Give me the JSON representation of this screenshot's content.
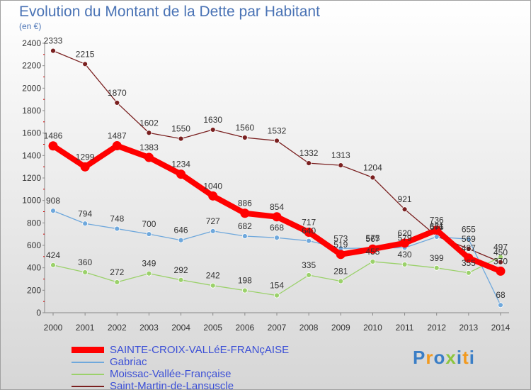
{
  "title": "Evolution du Montant de la Dette par Habitant",
  "subtitle": "(en €)",
  "logo": {
    "text": "Proxiti"
  },
  "chart_data": {
    "type": "line",
    "x": [
      2000,
      2001,
      2002,
      2003,
      2004,
      2005,
      2006,
      2007,
      2008,
      2009,
      2010,
      2011,
      2012,
      2013,
      2014
    ],
    "x_tick_labels": [
      "2000",
      "2001",
      "2002",
      "2003",
      "2004",
      "2005",
      "2006",
      "2007",
      "2008",
      "2009",
      "2010",
      "2011",
      "2012",
      "2013",
      "2014"
    ],
    "ylim": [
      0,
      2400
    ],
    "y_ticks": [
      0,
      200,
      400,
      600,
      800,
      1000,
      1200,
      1400,
      1600,
      1800,
      2000,
      2200,
      2400
    ],
    "y_tick_labels": [
      "0",
      "200",
      "400",
      "600",
      "800",
      "1000",
      "1200",
      "1400",
      "1600",
      "1800",
      "2000",
      "2200",
      "2400"
    ],
    "xlabel": "",
    "ylabel": "",
    "grid": false,
    "legend_position": "bottom-left",
    "series": [
      {
        "name": "SAINTE-CROIX-VALLéE-FRANçAISE",
        "color": "#ff0000",
        "emphasis": "thick",
        "values": [
          1486,
          1299,
          1487,
          1383,
          1234,
          1040,
          886,
          854,
          717,
          519,
          567,
          620,
          736,
          487,
          370
        ],
        "labels": [
          "1486",
          "1299",
          "1487",
          "1383",
          "1234",
          "1040",
          "886",
          "854",
          "717",
          "519",
          "567",
          "620",
          "736",
          "487",
          "370"
        ]
      },
      {
        "name": "Gabriac",
        "color": "#6fa8dc",
        "emphasis": "normal",
        "values": [
          908,
          794,
          748,
          700,
          646,
          727,
          682,
          668,
          640,
          573,
          575,
          579,
          676,
          655,
          68
        ],
        "labels": [
          "908",
          "794",
          "748",
          "700",
          "646",
          "727",
          "682",
          "668",
          "640",
          "573",
          "575",
          "579",
          "676",
          "655",
          "68"
        ]
      },
      {
        "name": "Moissac-Vallée-Française",
        "color": "#9bd16b",
        "emphasis": "normal",
        "values": [
          424,
          360,
          272,
          349,
          292,
          242,
          198,
          154,
          335,
          281,
          455,
          430,
          399,
          355,
          497
        ],
        "labels": [
          "424",
          "360",
          "272",
          "349",
          "292",
          "242",
          "198",
          "154",
          "335",
          "281",
          "455",
          "430",
          "399",
          "355",
          "497"
        ]
      },
      {
        "name": "Saint-Martin-de-Lansuscle",
        "color": "#7a2020",
        "emphasis": "normal",
        "values": [
          2333,
          2215,
          1870,
          1602,
          1550,
          1630,
          1560,
          1532,
          1332,
          1313,
          1204,
          921,
          681,
          569,
          450
        ],
        "labels": [
          "2333",
          "2215",
          "1870",
          "1602",
          "1550",
          "1630",
          "1560",
          "1532",
          "1332",
          "1313",
          "1204",
          "921",
          "681",
          "569",
          "450"
        ]
      }
    ]
  }
}
